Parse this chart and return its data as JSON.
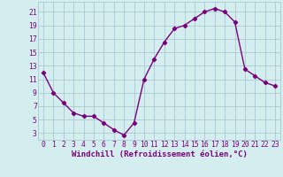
{
  "x": [
    0,
    1,
    2,
    3,
    4,
    5,
    6,
    7,
    8,
    9,
    10,
    11,
    12,
    13,
    14,
    15,
    16,
    17,
    18,
    19,
    20,
    21,
    22,
    23
  ],
  "y": [
    12,
    9,
    7.5,
    6,
    5.5,
    5.5,
    4.5,
    3.5,
    2.7,
    4.5,
    11,
    14,
    16.5,
    18.5,
    19,
    20,
    21,
    21.5,
    21,
    19.5,
    12.5,
    11.5,
    10.5,
    10
  ],
  "line_color": "#7B007B",
  "marker": "D",
  "marker_size": 2.2,
  "line_width": 1.0,
  "bg_color": "#d4eef0",
  "grid_color": "#a8c8d0",
  "xlabel": "Windchill (Refroidissement éolien,°C)",
  "xlabel_fontsize": 6.5,
  "xlabel_color": "#7B007B",
  "tick_fontsize": 5.8,
  "yticks": [
    3,
    5,
    7,
    9,
    11,
    13,
    15,
    17,
    19,
    21
  ],
  "xticks": [
    0,
    1,
    2,
    3,
    4,
    5,
    6,
    7,
    8,
    9,
    10,
    11,
    12,
    13,
    14,
    15,
    16,
    17,
    18,
    19,
    20,
    21,
    22,
    23
  ],
  "xlim": [
    -0.5,
    23.5
  ],
  "ylim": [
    2.0,
    22.5
  ]
}
